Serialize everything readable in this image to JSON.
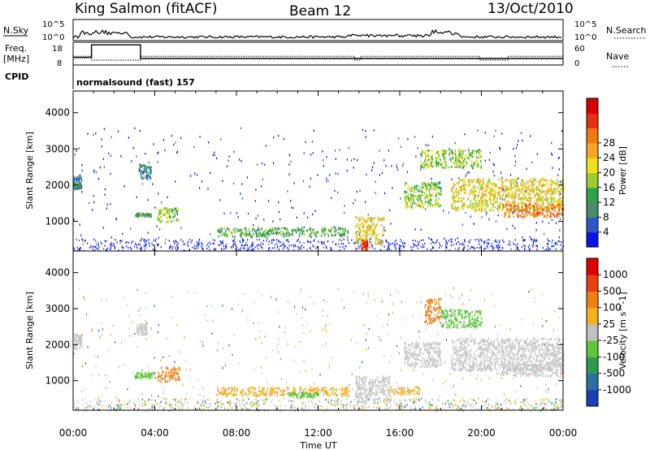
{
  "header": {
    "station": "King Salmon (fitACF)",
    "beam": "Beam 12",
    "date": "13/Oct/2010"
  },
  "summary": {
    "nsky_label": "N.Sky",
    "nsky_ticks": [
      "10^5",
      "10^0"
    ],
    "nsearch_label": "N.Search",
    "nsearch_ticks": [
      "10^5",
      "10^0"
    ],
    "freq_label_1": "Freq.",
    "freq_label_2": "[MHz]",
    "freq_ticks": [
      "18",
      "8"
    ],
    "nave_label": "Nave",
    "nave_ticks": [
      "60",
      "0"
    ],
    "cpid_label": "CPID",
    "cpid_text": "normalsound (fast) 157",
    "freq_steps": [
      {
        "t": 0.0,
        "f": 11.0
      },
      {
        "t": 0.9,
        "f": 17.5
      },
      {
        "t": 3.3,
        "f": 10.5
      },
      {
        "t": 24.0,
        "f": 10.5
      }
    ],
    "nave_steps": [
      {
        "t": 0.0,
        "n": 22
      },
      {
        "t": 0.9,
        "n": 10
      },
      {
        "t": 3.3,
        "n": 22
      },
      {
        "t": 13.8,
        "n": 10
      },
      {
        "t": 14.1,
        "n": 22
      },
      {
        "t": 19.9,
        "n": 10
      },
      {
        "t": 21.3,
        "n": 22
      },
      {
        "t": 24.0,
        "n": 22
      }
    ]
  },
  "chart_data": [
    {
      "type": "heatmap",
      "name": "power",
      "ylabel": "Slant Range [km]",
      "colorbar_label": "Power [dB]",
      "ylim": [
        180,
        4600
      ],
      "xlim": [
        0,
        24
      ],
      "yticks": [
        "1000",
        "2000",
        "3000",
        "4000"
      ],
      "ytick_values": [
        1000,
        2000,
        3000,
        4000
      ],
      "colorbar_ticks": [
        "4",
        "8",
        "12",
        "16",
        "20",
        "24",
        "28"
      ],
      "colorbar_colors": [
        "#0a14e6",
        "#2b58c8",
        "#4a8a6e",
        "#2fa34a",
        "#9acd32",
        "#f0e020",
        "#f5a623",
        "#f07a10",
        "#e83010",
        "#d80000"
      ],
      "regions": [
        {
          "t0": 0.0,
          "t1": 0.4,
          "r0": 1900,
          "r1": 2300,
          "level": 2
        },
        {
          "t0": 3.0,
          "t1": 3.8,
          "r0": 1150,
          "r1": 1250,
          "level": 3
        },
        {
          "t0": 3.2,
          "t1": 3.8,
          "r0": 2200,
          "r1": 2600,
          "level": 2
        },
        {
          "t0": 4.1,
          "t1": 5.2,
          "r0": 1000,
          "r1": 1400,
          "level": 4
        },
        {
          "t0": 7.0,
          "t1": 13.5,
          "r0": 600,
          "r1": 850,
          "level": 3
        },
        {
          "t0": 13.8,
          "t1": 15.2,
          "r0": 400,
          "r1": 1150,
          "level": 5
        },
        {
          "t0": 14.1,
          "t1": 14.4,
          "r0": 250,
          "r1": 500,
          "level": 8
        },
        {
          "t0": 16.2,
          "t1": 18.0,
          "r0": 1400,
          "r1": 2100,
          "level": 4
        },
        {
          "t0": 17.0,
          "t1": 20.0,
          "r0": 2500,
          "r1": 3000,
          "level": 4
        },
        {
          "t0": 18.5,
          "t1": 24.0,
          "r0": 1300,
          "r1": 2200,
          "level": 5
        },
        {
          "t0": 21.0,
          "t1": 24.0,
          "r0": 1150,
          "r1": 1500,
          "level": 7
        }
      ]
    },
    {
      "type": "heatmap",
      "name": "velocity",
      "ylabel": "Slant Range [km]",
      "colorbar_label": "Velocity [m s^-1]",
      "ylim": [
        180,
        4600
      ],
      "xlim": [
        0,
        24
      ],
      "yticks": [
        "1000",
        "2000",
        "3000",
        "4000"
      ],
      "ytick_values": [
        1000,
        2000,
        3000,
        4000
      ],
      "colorbar_ticks": [
        "1000",
        "500",
        "100",
        "25",
        "-25",
        "-100",
        "-500",
        "-1000"
      ],
      "colorbar_colors": [
        "#1a40b8",
        "#2a70a0",
        "#2e9a50",
        "#5ac83a",
        "#c0c0c0",
        "#f5b020",
        "#f08010",
        "#e84010",
        "#e00000"
      ],
      "regions": [
        {
          "t0": 0.0,
          "t1": 0.4,
          "r0": 1900,
          "r1": 2300,
          "color": "#c8c8c8"
        },
        {
          "t0": 3.1,
          "t1": 3.6,
          "r0": 2300,
          "r1": 2600,
          "color": "#c8c8c8"
        },
        {
          "t0": 3.0,
          "t1": 4.0,
          "r0": 1100,
          "r1": 1250,
          "color": "#5ac83a"
        },
        {
          "t0": 4.1,
          "t1": 5.2,
          "r0": 1000,
          "r1": 1400,
          "color": "#f08010"
        },
        {
          "t0": 7.0,
          "t1": 13.5,
          "r0": 600,
          "r1": 850,
          "color": "#f5b020"
        },
        {
          "t0": 10.5,
          "t1": 12.0,
          "r0": 550,
          "r1": 700,
          "color": "#5ac83a"
        },
        {
          "t0": 13.8,
          "t1": 15.5,
          "r0": 400,
          "r1": 1150,
          "color": "#c8c8c8"
        },
        {
          "t0": 15.5,
          "t1": 17.0,
          "r0": 650,
          "r1": 850,
          "color": "#f5b020"
        },
        {
          "t0": 16.2,
          "t1": 18.0,
          "r0": 1400,
          "r1": 2100,
          "color": "#c8c8c8"
        },
        {
          "t0": 17.2,
          "t1": 18.0,
          "r0": 2600,
          "r1": 3300,
          "color": "#f08010"
        },
        {
          "t0": 18.0,
          "t1": 20.0,
          "r0": 2500,
          "r1": 3000,
          "color": "#5ac83a"
        },
        {
          "t0": 18.5,
          "t1": 24.0,
          "r0": 1300,
          "r1": 2200,
          "color": "#c8c8c8"
        },
        {
          "t0": 21.0,
          "t1": 24.0,
          "r0": 1150,
          "r1": 1500,
          "color": "#c8c8c8"
        }
      ]
    }
  ],
  "xaxis": {
    "label": "Time UT",
    "ticks": [
      "00:00",
      "04:00",
      "08:00",
      "12:00",
      "16:00",
      "20:00",
      "00:00"
    ],
    "tick_values": [
      0,
      4,
      8,
      12,
      16,
      20,
      24
    ]
  }
}
